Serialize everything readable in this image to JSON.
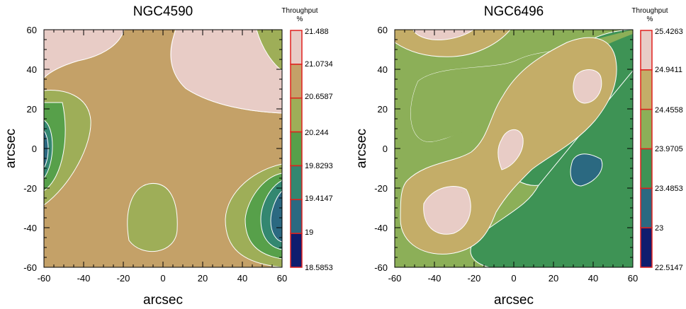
{
  "chart_data": [
    {
      "type": "contour",
      "title": "NGC4590",
      "xlabel": "arcsec",
      "ylabel": "arcsec",
      "xlim": [
        -60,
        60
      ],
      "ylim": [
        -60,
        60
      ],
      "xticks": [
        "-60",
        "-40",
        "-20",
        "0",
        "20",
        "40",
        "60"
      ],
      "yticks": [
        "60",
        "40",
        "20",
        "0",
        "-20",
        "-40",
        "-60"
      ],
      "colorbar": {
        "title": "Throughput",
        "unit": "%",
        "levels": [
          "21.488",
          "21.0734",
          "20.6587",
          "20.244",
          "19.8293",
          "19.4147",
          "19",
          "18.5853"
        ],
        "colors": [
          "#e8ccc6",
          "#c4a168",
          "#9eae58",
          "#57a04a",
          "#338770",
          "#2b6981",
          "#0f1d6e"
        ]
      }
    },
    {
      "type": "contour",
      "title": "NGC6496",
      "xlabel": "arcsec",
      "ylabel": "arcsec",
      "xlim": [
        -60,
        60
      ],
      "ylim": [
        -60,
        60
      ],
      "xticks": [
        "-60",
        "-40",
        "-20",
        "0",
        "20",
        "40",
        "60"
      ],
      "yticks": [
        "60",
        "40",
        "20",
        "0",
        "-20",
        "-40",
        "-60"
      ],
      "colorbar": {
        "title": "Throughput",
        "unit": "%",
        "levels": [
          "25.4263",
          "24.9411",
          "24.4558",
          "23.9705",
          "23.4853",
          "23",
          "22.5147"
        ],
        "colors": [
          "#e8ccc6",
          "#c4ad68",
          "#8caf58",
          "#3e9355",
          "#2b6981",
          "#0f1d6e"
        ]
      }
    }
  ]
}
